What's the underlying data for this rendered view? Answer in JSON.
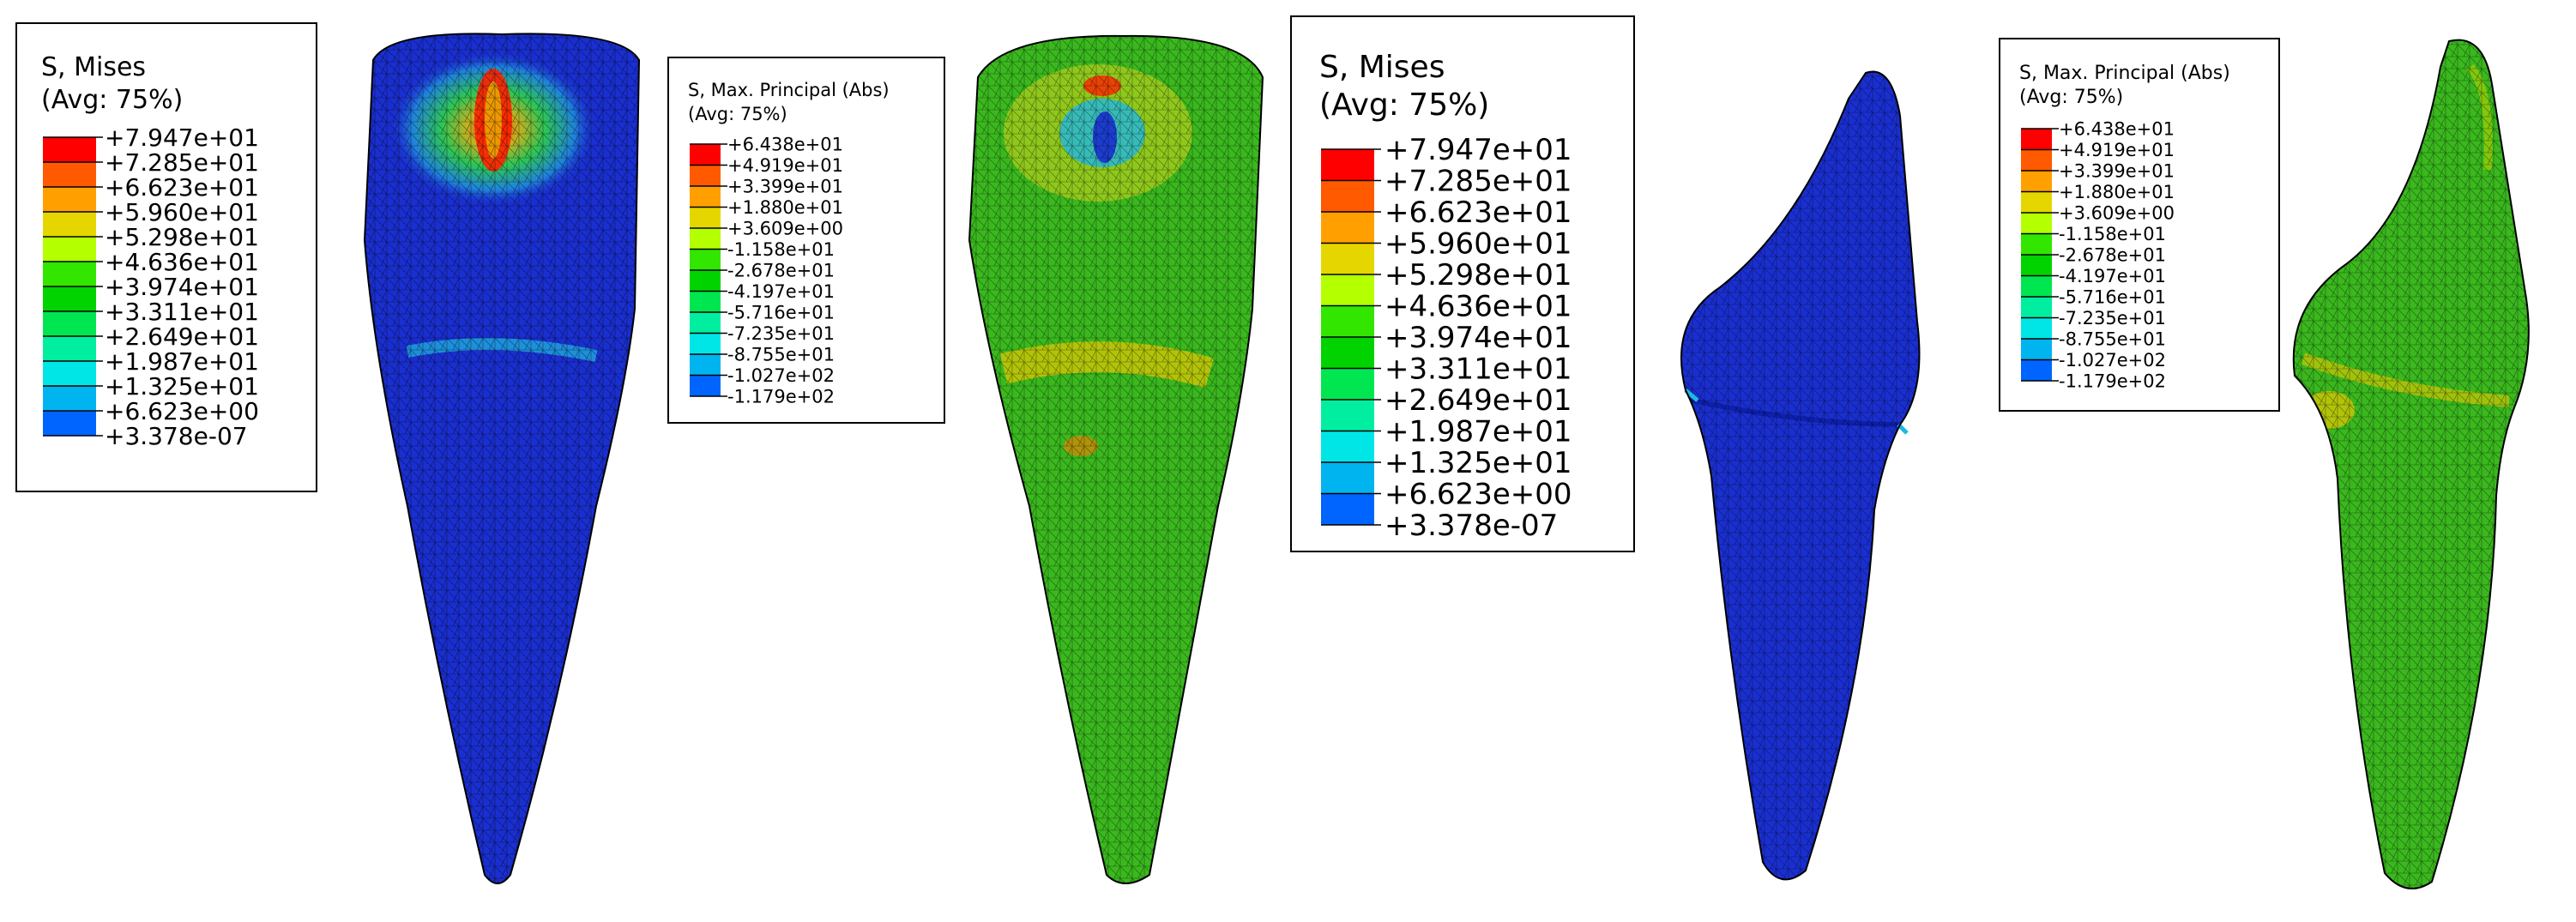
{
  "legend_mises": {
    "title": "S, Mises",
    "avg": "(Avg: 75%)",
    "values": [
      "+7.947e+01",
      "+7.285e+01",
      "+6.623e+01",
      "+5.960e+01",
      "+5.298e+01",
      "+4.636e+01",
      "+3.974e+01",
      "+3.311e+01",
      "+2.649e+01",
      "+1.987e+01",
      "+1.325e+01",
      "+6.623e+00",
      "+3.378e-07"
    ],
    "colors": [
      "#ff0000",
      "#ff5a00",
      "#ffa000",
      "#e6d600",
      "#b4ff00",
      "#32e600",
      "#00d300",
      "#00e650",
      "#00eea0",
      "#00e6e6",
      "#00b4f0",
      "#0064ff",
      "#0000f0"
    ]
  },
  "legend_principal": {
    "title": "S, Max. Principal (Abs)",
    "avg": "(Avg: 75%)",
    "values": [
      "+6.438e+01",
      "+4.919e+01",
      "+3.399e+01",
      "+1.880e+01",
      "+3.609e+00",
      "-1.158e+01",
      "-2.678e+01",
      "-4.197e+01",
      "-5.716e+01",
      "-7.235e+01",
      "-8.755e+01",
      "-1.027e+02",
      "-1.179e+02"
    ],
    "colors": [
      "#ff0000",
      "#ff5a00",
      "#ffa000",
      "#e6d600",
      "#b4ff00",
      "#32e600",
      "#00d300",
      "#00e650",
      "#00eea0",
      "#00e6e6",
      "#00b4f0",
      "#0064ff",
      "#0000f0"
    ]
  },
  "colors": {
    "mises_body": "#1a2fd0",
    "principal_body": "#3ab81e",
    "mesh_line": "#000000",
    "hot": "#ff2000",
    "warm": "#e6c800",
    "cool": "#20b8e0"
  }
}
